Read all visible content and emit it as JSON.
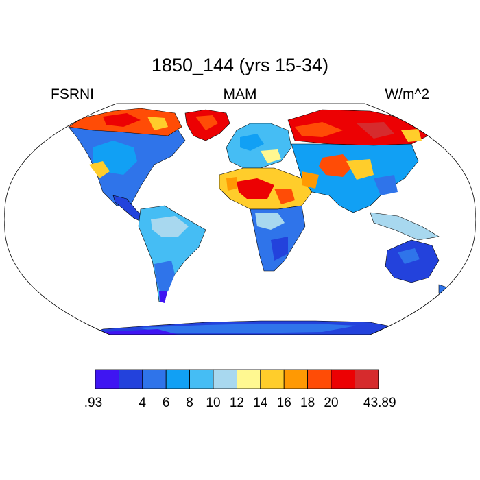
{
  "title": "1850_144 (yrs 15-34)",
  "variable": "FSRNI",
  "season": "MAM",
  "units": "W/m^2",
  "colorbar": {
    "colors": [
      "#3f15f2",
      "#2342dc",
      "#2f74ea",
      "#11a0f4",
      "#45bdf4",
      "#a8d8ef",
      "#fff891",
      "#ffcd2b",
      "#ff9903",
      "#ff4c06",
      "#ec0103",
      "#d62b2d"
    ],
    "labels": [
      ".93",
      "4",
      "6",
      "8",
      "10",
      "12",
      "14",
      "16",
      "18",
      "20",
      "43.89"
    ]
  },
  "map_regions": [
    {
      "name": "north-america",
      "value": 9
    },
    {
      "name": "arctic-canada",
      "value": 19
    },
    {
      "name": "greenland",
      "value": 20
    },
    {
      "name": "south-america",
      "value": 9
    },
    {
      "name": "europe",
      "value": 11
    },
    {
      "name": "sahara",
      "value": 18
    },
    {
      "name": "africa-south",
      "value": 8
    },
    {
      "name": "siberia",
      "value": 20
    },
    {
      "name": "asia",
      "value": 10
    },
    {
      "name": "australia",
      "value": 4
    },
    {
      "name": "antarctica",
      "value": 3
    }
  ]
}
